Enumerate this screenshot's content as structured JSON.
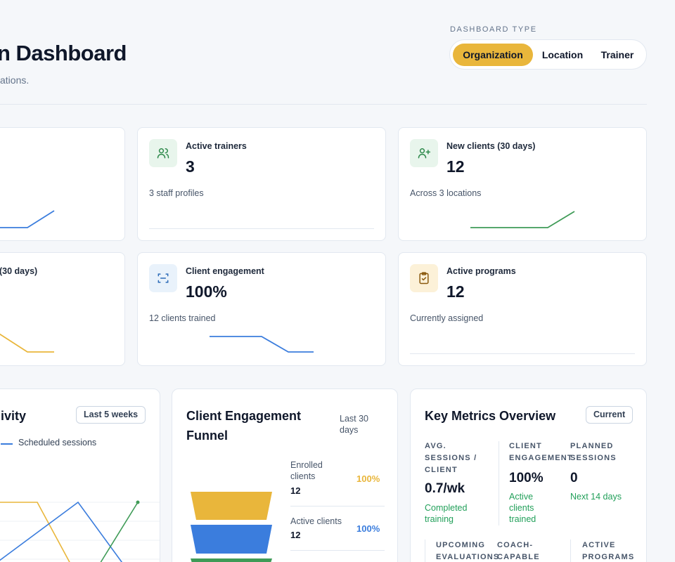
{
  "header": {
    "title": "n Dashboard",
    "subtitle": "ations."
  },
  "dashboard_type": {
    "label": "DASHBOARD TYPE",
    "options": [
      "Organization",
      "Location",
      "Trainer"
    ],
    "selected": "Organization"
  },
  "stats": {
    "active_trainers": {
      "label": "Active trainers",
      "value": "3",
      "note": "3 staff profiles",
      "icon": "users-icon"
    },
    "new_clients": {
      "label": "New clients (30 days)",
      "value": "12",
      "note": "Across 3 locations",
      "icon": "user-plus-icon"
    },
    "partial_card": {
      "label": "(30 days)"
    },
    "client_engagement": {
      "label": "Client engagement",
      "value": "100%",
      "note": "12 clients trained",
      "icon": "scan-icon"
    },
    "active_programs": {
      "label": "Active programs",
      "value": "12",
      "note": "Currently assigned",
      "icon": "clipboard-check-icon"
    }
  },
  "activity": {
    "title": "ivity",
    "range": "Last 5 weeks",
    "legend": "Scheduled sessions"
  },
  "funnel": {
    "title_line1": "Client Engagement",
    "title_line2": "Funnel",
    "range_line1": "Last 30",
    "range_line2": "days",
    "stages": [
      {
        "label_line1": "Enrolled",
        "label_line2": "clients",
        "value": "12",
        "pct": "100%",
        "color": "#e9b63b"
      },
      {
        "label_line1": "Active clients",
        "label_line2": "",
        "value": "12",
        "pct": "100%",
        "color": "#3b7ddd"
      }
    ]
  },
  "metrics": {
    "title": "Key Metrics Overview",
    "badge": "Current",
    "items": [
      {
        "label": [
          "AVG.",
          "SESSIONS /",
          "CLIENT"
        ],
        "value": "0.7/wk",
        "note": [
          "Completed",
          "training"
        ]
      },
      {
        "label": [
          "CLIENT",
          "ENGAGEMENT"
        ],
        "value": "100%",
        "note": [
          "Active",
          "clients",
          "trained"
        ]
      },
      {
        "label": [
          "PLANNED",
          "SESSIONS"
        ],
        "value": "0",
        "note": [
          "Next 14 days"
        ]
      }
    ],
    "row2": [
      "UPCOMING",
      "EVALUATIONS",
      "COACH-",
      "CAPABLE",
      "ACTIVE",
      "PROGRAMS"
    ]
  },
  "colors": {
    "accent": "#e9b63b",
    "blue": "#3b7ddd",
    "green": "#3f9b57"
  }
}
